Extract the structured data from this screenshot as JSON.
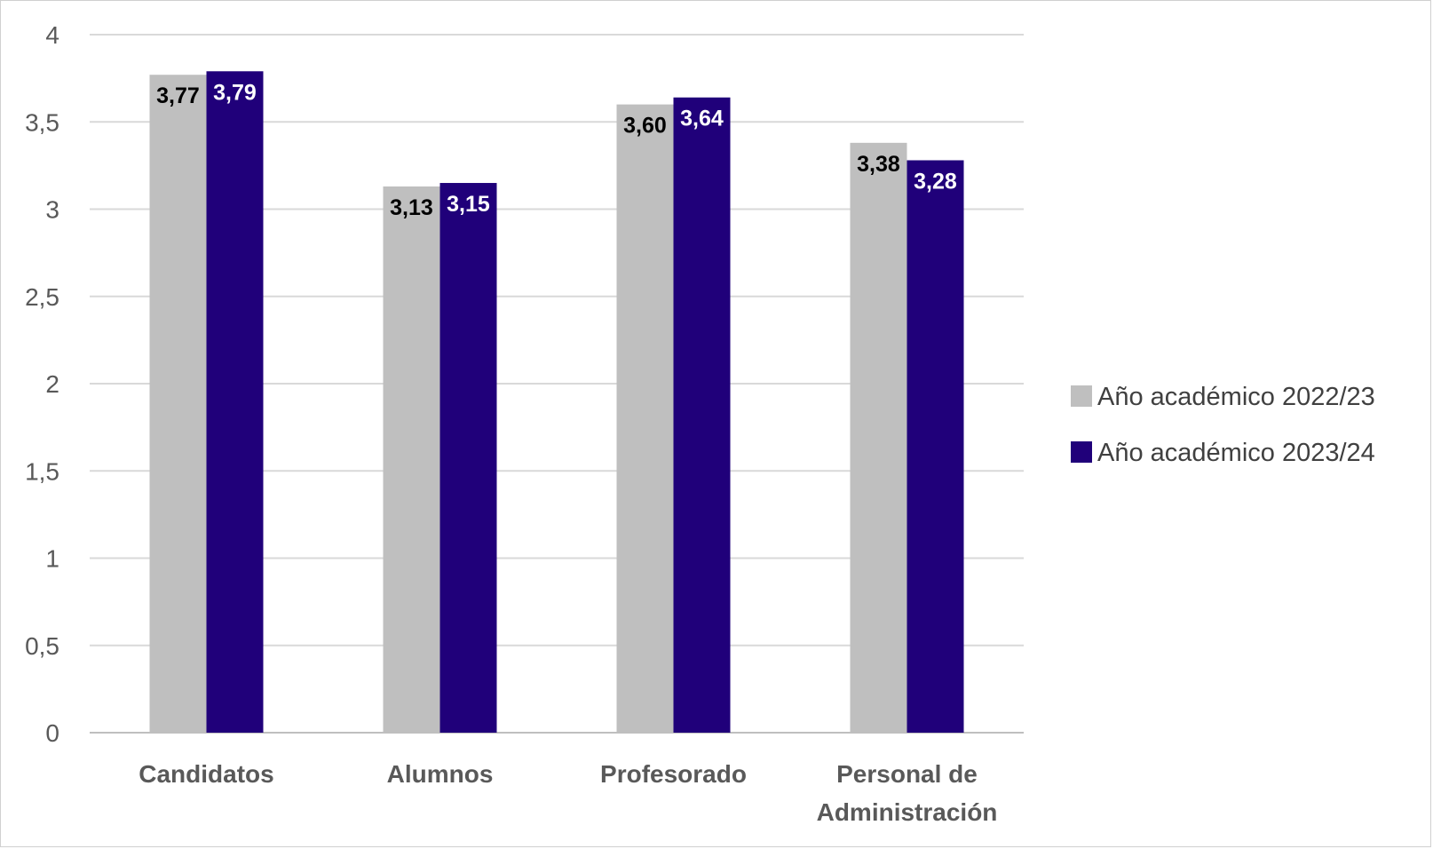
{
  "chart_data": {
    "type": "bar",
    "title": "",
    "xlabel": "",
    "ylabel": "",
    "ylim": [
      0,
      4
    ],
    "yticks": [
      0,
      0.5,
      1,
      1.5,
      2,
      2.5,
      3,
      3.5,
      4
    ],
    "ytick_labels": [
      "0",
      "0,5",
      "1",
      "1,5",
      "2",
      "2,5",
      "3",
      "3,5",
      "4"
    ],
    "grid": true,
    "legend_position": "right",
    "categories": [
      [
        "Candidatos"
      ],
      [
        "Alumnos"
      ],
      [
        "Profesorado"
      ],
      [
        "Personal de",
        "Administración"
      ]
    ],
    "series": [
      {
        "name": "Año académico 2022/23",
        "color": "#bfbfbf",
        "label_color": "#000000",
        "values": [
          3.77,
          3.13,
          3.6,
          3.38
        ],
        "labels": [
          "3,77",
          "3,13",
          "3,60",
          "3,38"
        ]
      },
      {
        "name": "Año académico 2023/24",
        "color": "#20007a",
        "label_color": "#ffffff",
        "values": [
          3.79,
          3.15,
          3.64,
          3.28
        ],
        "labels": [
          "3,79",
          "3,15",
          "3,64",
          "3,28"
        ]
      }
    ]
  }
}
